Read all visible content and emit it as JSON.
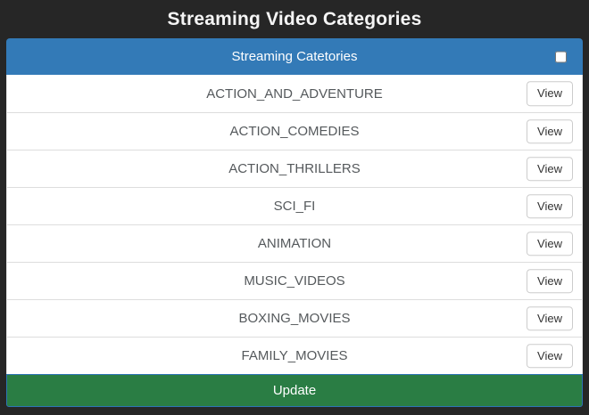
{
  "page": {
    "title": "Streaming Video Categories"
  },
  "colors": {
    "page_bg": "#262626",
    "header_blue": "#337ab7",
    "footer_green": "#2a7d44",
    "row_text_gray": "#55595c"
  },
  "panel": {
    "header": {
      "label": "Streaming Catetories",
      "checkbox_checked": false
    },
    "view_label": "View",
    "categories": [
      "ACTION_AND_ADVENTURE",
      "ACTION_COMEDIES",
      "ACTION_THRILLERS",
      "SCI_FI",
      "ANIMATION",
      "MUSIC_VIDEOS",
      "BOXING_MOVIES",
      "FAMILY_MOVIES"
    ],
    "footer": {
      "label": "Update"
    }
  }
}
